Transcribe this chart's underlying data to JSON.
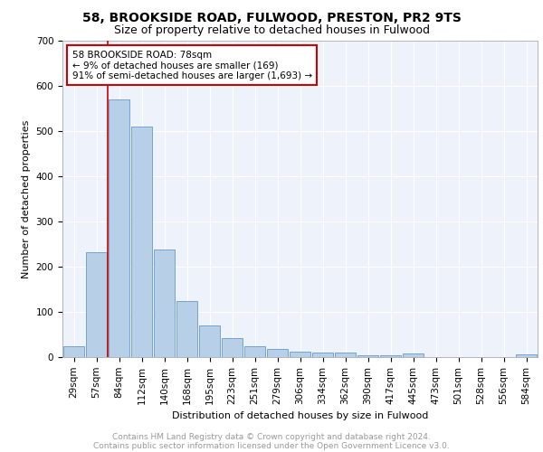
{
  "title1": "58, BROOKSIDE ROAD, FULWOOD, PRESTON, PR2 9TS",
  "title2": "Size of property relative to detached houses in Fulwood",
  "xlabel": "Distribution of detached houses by size in Fulwood",
  "ylabel": "Number of detached properties",
  "bar_labels": [
    "29sqm",
    "57sqm",
    "84sqm",
    "112sqm",
    "140sqm",
    "168sqm",
    "195sqm",
    "223sqm",
    "251sqm",
    "279sqm",
    "306sqm",
    "334sqm",
    "362sqm",
    "390sqm",
    "417sqm",
    "445sqm",
    "473sqm",
    "501sqm",
    "528sqm",
    "556sqm",
    "584sqm"
  ],
  "bar_values": [
    25,
    232,
    570,
    510,
    238,
    125,
    70,
    42,
    25,
    18,
    12,
    11,
    10,
    5,
    4,
    9,
    0,
    0,
    0,
    0,
    6
  ],
  "bar_color": "#b8cfe8",
  "bar_edge_color": "#6699cc",
  "vline_color": "#cc0000",
  "annotation_text": "58 BROOKSIDE ROAD: 78sqm\n← 9% of detached houses are smaller (169)\n91% of semi-detached houses are larger (1,693) →",
  "annotation_box_color": "#ffffff",
  "annotation_box_edge": "#cc0000",
  "ylim": [
    0,
    700
  ],
  "yticks": [
    0,
    100,
    200,
    300,
    400,
    500,
    600,
    700
  ],
  "footnote1": "Contains HM Land Registry data © Crown copyright and database right 2024.",
  "footnote2": "Contains public sector information licensed under the Open Government Licence v3.0.",
  "bg_color": "#edf2fb",
  "grid_color": "#ffffff",
  "title_fontsize": 10,
  "subtitle_fontsize": 9,
  "axis_label_fontsize": 8,
  "tick_fontsize": 7.5,
  "footnote_fontsize": 6.5,
  "annot_fontsize": 7.5
}
